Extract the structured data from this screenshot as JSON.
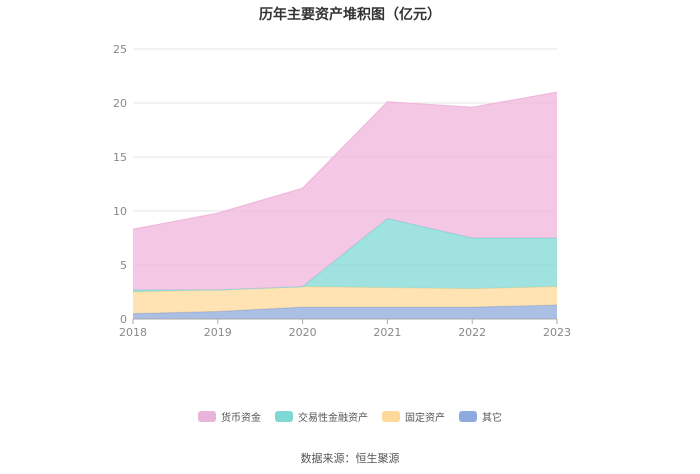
{
  "chart_data": {
    "type": "area",
    "stacked": true,
    "title": "历年主要资产堆积图（亿元）",
    "categories": [
      "2018",
      "2019",
      "2020",
      "2021",
      "2022",
      "2023"
    ],
    "ylim": [
      0,
      25
    ],
    "yticks": [
      0,
      5,
      10,
      15,
      20,
      25
    ],
    "grid": true,
    "legend_position": "bottom",
    "series": [
      {
        "name": "其它",
        "color": "#8faadc",
        "values": [
          0.5,
          0.7,
          1.1,
          1.1,
          1.1,
          1.3
        ]
      },
      {
        "name": "固定资产",
        "color": "#ffd99a",
        "values": [
          2.0,
          2.0,
          1.9,
          1.8,
          1.7,
          1.7
        ]
      },
      {
        "name": "交易性金融资产",
        "color": "#7fd8d4",
        "values": [
          0.2,
          0.0,
          0.0,
          6.4,
          4.7,
          4.5
        ]
      },
      {
        "name": "货币资金",
        "color": "#f0b6dc",
        "values": [
          5.6,
          7.1,
          9.1,
          10.8,
          12.1,
          13.5
        ]
      }
    ],
    "source": "数据来源：恒生聚源"
  }
}
